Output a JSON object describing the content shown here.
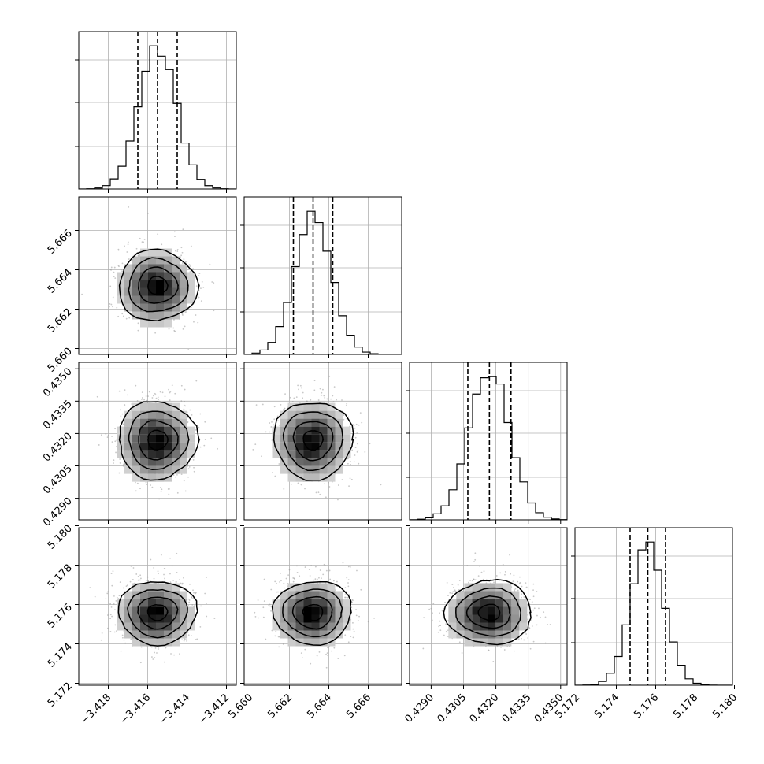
{
  "chart_data": {
    "type": "corner",
    "title": "",
    "parameters": [
      {
        "label": "",
        "center": -3.4155,
        "sigma": 0.00095,
        "range": [
          -3.4195,
          -3.4115
        ],
        "ticks": [
          -3.418,
          -3.416,
          -3.414,
          -3.412
        ],
        "tick_labels": [
          "−3.418",
          "−3.416",
          "−3.414",
          "−3.412"
        ],
        "quantiles": [
          -3.4165,
          -3.4155,
          -3.4145
        ]
      },
      {
        "label": "",
        "center": 5.6632,
        "sigma": 0.00095,
        "range": [
          5.6597,
          5.6677
        ],
        "ticks": [
          5.66,
          5.662,
          5.664,
          5.666
        ],
        "tick_labels": [
          "5.660",
          "5.662",
          "5.664",
          "5.666"
        ],
        "quantiles": [
          5.6622,
          5.6632,
          5.6642
        ]
      },
      {
        "label": "",
        "center": 0.4317,
        "sigma": 0.00095,
        "range": [
          0.428,
          0.4353
        ],
        "ticks": [
          0.429,
          0.4305,
          0.432,
          0.4335,
          0.435
        ],
        "tick_labels": [
          "0.4290",
          "0.4305",
          "0.4320",
          "0.4335",
          "0.4350"
        ],
        "quantiles": [
          0.4307,
          0.4317,
          0.4327
        ]
      },
      {
        "label": "",
        "center": 5.1756,
        "sigma": 0.00085,
        "range": [
          5.1719,
          5.1799
        ],
        "ticks": [
          5.172,
          5.174,
          5.176,
          5.178,
          5.18
        ],
        "tick_labels": [
          "5.172",
          "5.174",
          "5.176",
          "5.178",
          "5.180"
        ],
        "quantiles": [
          5.1747,
          5.1756,
          5.1765
        ]
      }
    ],
    "histogram_bins": 20,
    "contour_levels_sigma": [
      0.5,
      1.0,
      1.5,
      2.0
    ],
    "show_datapoints": true,
    "grid": true,
    "quantile_line_style": "dashed",
    "colors": {
      "line": "#000000",
      "points": "#9a9a9a",
      "density_dark": "#000000",
      "density_light": "#f2f2f2"
    }
  }
}
